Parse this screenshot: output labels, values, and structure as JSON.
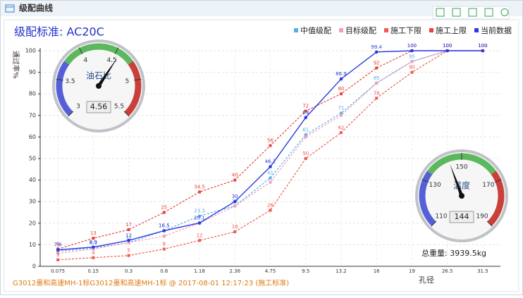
{
  "panel": {
    "title": "级配曲线"
  },
  "chart_data": [
    {
      "type": "line",
      "title": "级配标准: AC20C",
      "y_label": "通过率%",
      "x_label": "孔径",
      "categories": [
        "0.075",
        "0.15",
        "0.3",
        "0.6",
        "1.18",
        "2.36",
        "4.75",
        "9.5",
        "13.2",
        "16",
        "19",
        "26.5",
        "31.5"
      ],
      "ylim": [
        0,
        100
      ],
      "yticks": [
        0,
        10,
        20,
        30,
        40,
        50,
        60,
        70,
        80,
        90,
        100
      ],
      "grid": true,
      "series": [
        {
          "name": "中值级配",
          "color": "#5aaeea",
          "dash": true,
          "data_labels": true,
          "values": [
            7,
            8.5,
            11,
            16.5,
            23.3,
            28,
            41,
            61,
            71,
            85,
            95,
            100,
            100
          ]
        },
        {
          "name": "目标级配",
          "color": "#f0a0b4",
          "dash": true,
          "data_labels": false,
          "values": [
            6,
            8,
            11,
            14,
            20,
            28,
            39,
            60,
            70,
            85,
            95,
            100,
            100
          ]
        },
        {
          "name": "施工下限",
          "color": "#f05a50",
          "dash": true,
          "data_labels": true,
          "values": [
            3,
            4,
            5,
            8,
            12,
            16,
            26,
            50,
            62,
            78,
            90,
            100,
            100
          ]
        },
        {
          "name": "施工上限",
          "color": "#e8403a",
          "dash": true,
          "data_labels": true,
          "values": [
            8,
            13,
            17,
            25,
            34.5,
            40,
            56,
            72,
            80,
            92,
            100,
            100,
            100
          ]
        },
        {
          "name": "当前数据",
          "color": "#2b3be0",
          "dash": false,
          "data_labels": true,
          "values": [
            7.6,
            8.9,
            12,
            16.5,
            20.1,
            30,
            46.2,
            69,
            86.9,
            99.4,
            100,
            100,
            100
          ]
        }
      ],
      "total_weight": "总重量: 3939.5kg",
      "footer": "G3012墨和高速MH-1标G3012墨和高速MH-1标 @ 2017-08-01 12:17:23 (施工标准)"
    },
    {
      "type": "gauge",
      "label": "油石比",
      "value": 4.56,
      "ylim": [
        3,
        5.5
      ],
      "yticks": [
        3,
        3.5,
        4,
        4.5,
        5,
        5.5
      ]
    },
    {
      "type": "gauge",
      "label": "温度",
      "value": 144,
      "ylim": [
        110,
        190
      ],
      "yticks": [
        110,
        130,
        150,
        170,
        190
      ]
    }
  ]
}
